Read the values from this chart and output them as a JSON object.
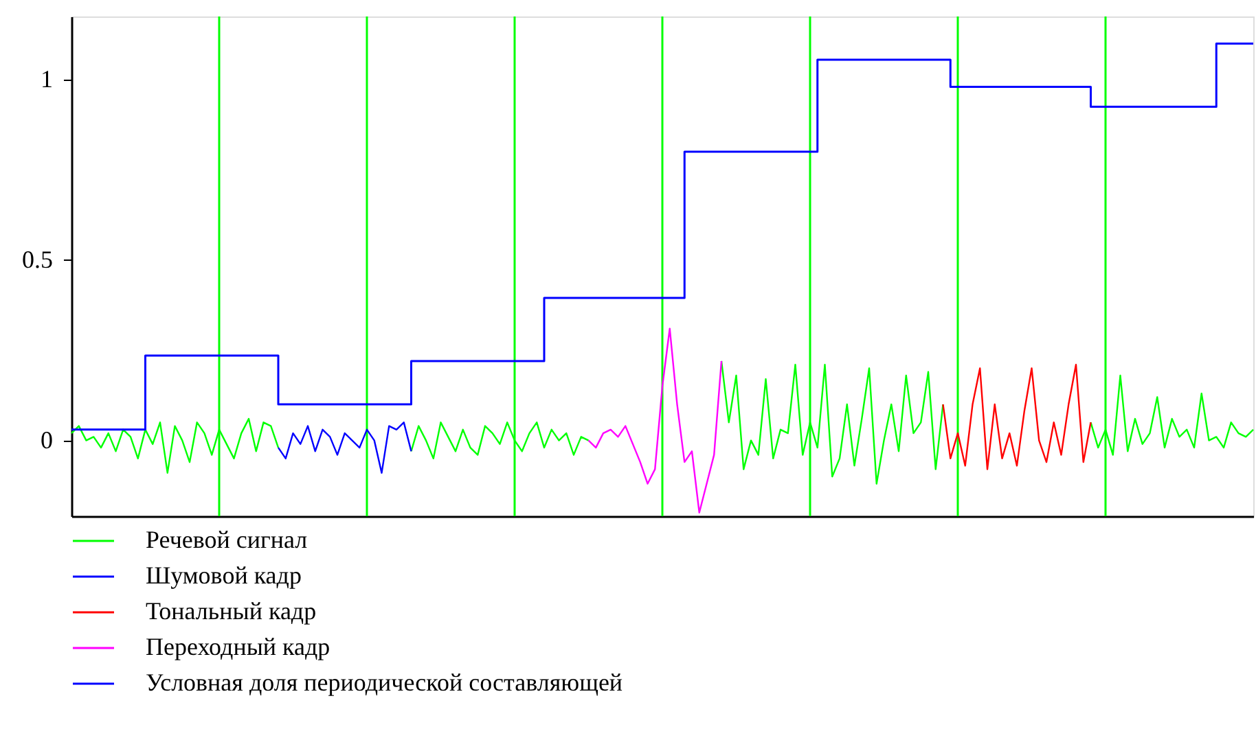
{
  "chart_data": {
    "type": "line",
    "ylim": [
      -0.21,
      1.175
    ],
    "yticks": [
      0,
      0.5,
      1
    ],
    "tick_labels": "y",
    "grid": false,
    "legend": "bottom",
    "marker": "none",
    "line_style": "solid",
    "categories": [
      null,
      null,
      null,
      null,
      null,
      null,
      null,
      null,
      null,
      null,
      null,
      null,
      null,
      null,
      null,
      null,
      null,
      null,
      null,
      null,
      null,
      null,
      null,
      null,
      null,
      null,
      null,
      null,
      null,
      null,
      null,
      null,
      null,
      null,
      null,
      null,
      null,
      null,
      null,
      null,
      null,
      null,
      null,
      null,
      null,
      null,
      null,
      null,
      null,
      null,
      null,
      null,
      null,
      null,
      null,
      null,
      null,
      null,
      null,
      null,
      null,
      null,
      null,
      null,
      null,
      null,
      null,
      null,
      null,
      null,
      null,
      null,
      null,
      null,
      null,
      null,
      null,
      null,
      null,
      null,
      null,
      null,
      null,
      null,
      null,
      null,
      null,
      null,
      null,
      null,
      null,
      null,
      null,
      null,
      null,
      null,
      null,
      null,
      null,
      null,
      null,
      null,
      null,
      null,
      null,
      null,
      null,
      null,
      null,
      null,
      null,
      null,
      null,
      null,
      null,
      null,
      null,
      null,
      null,
      null,
      null,
      null,
      null,
      null,
      null,
      null,
      null,
      null,
      null,
      null,
      null,
      null,
      null,
      null,
      null,
      null,
      null,
      null,
      null,
      null,
      null,
      null,
      null,
      null,
      null,
      null,
      null,
      null,
      null,
      null,
      null,
      null,
      null,
      null,
      null,
      null,
      null,
      null,
      null,
      null,
      null
    ],
    "series": [
      {
        "name": "Речевой сигнал",
        "color": "#00ff00",
        "values": [
          0.02,
          0.04,
          0.0,
          0.01,
          -0.02,
          0.02,
          -0.03,
          0.03,
          0.01,
          -0.05,
          0.03,
          -0.01,
          0.05,
          -0.09,
          0.04,
          0.0,
          -0.06,
          0.05,
          0.02,
          -0.04,
          0.03,
          -0.01,
          -0.05,
          0.02,
          0.06,
          -0.03,
          0.05,
          0.04,
          -0.02,
          null,
          null,
          null,
          null,
          null,
          null,
          null,
          null,
          null,
          null,
          null,
          null,
          null,
          null,
          null,
          null,
          null,
          -0.03,
          0.04,
          0.0,
          -0.05,
          0.05,
          0.01,
          -0.03,
          0.03,
          -0.02,
          -0.04,
          0.04,
          0.02,
          -0.01,
          0.05,
          0.0,
          -0.03,
          0.02,
          0.05,
          -0.02,
          0.03,
          0.0,
          0.02,
          -0.04,
          0.01,
          0.0,
          null,
          null,
          null,
          null,
          null,
          null,
          null,
          null,
          null,
          null,
          null,
          null,
          null,
          null,
          null,
          null,
          null,
          0.22,
          0.05,
          0.18,
          -0.08,
          0.0,
          -0.04,
          0.17,
          -0.05,
          0.03,
          0.02,
          0.21,
          -0.04,
          0.05,
          -0.02,
          0.21,
          -0.1,
          -0.05,
          0.1,
          -0.07,
          0.06,
          0.2,
          -0.12,
          0.0,
          0.1,
          -0.03,
          0.18,
          0.02,
          0.05,
          0.19,
          -0.08,
          0.1,
          null,
          null,
          null,
          null,
          null,
          null,
          null,
          null,
          null,
          null,
          null,
          null,
          null,
          null,
          null,
          null,
          null,
          null,
          null,
          0.05,
          -0.02,
          0.03,
          -0.04,
          0.18,
          -0.03,
          0.06,
          -0.01,
          0.02,
          0.12,
          -0.02,
          0.06,
          0.01,
          0.03,
          -0.02,
          0.13,
          0.0,
          0.01,
          -0.02,
          0.05,
          0.02,
          0.01,
          0.03
        ]
      },
      {
        "name": "Шумовой кадр",
        "color": "#0000ff",
        "values": [
          null,
          null,
          null,
          null,
          null,
          null,
          null,
          null,
          null,
          null,
          null,
          null,
          null,
          null,
          null,
          null,
          null,
          null,
          null,
          null,
          null,
          null,
          null,
          null,
          null,
          null,
          null,
          null,
          -0.02,
          -0.05,
          0.02,
          -0.01,
          0.04,
          -0.03,
          0.03,
          0.01,
          -0.04,
          0.02,
          0.0,
          -0.02,
          0.03,
          0.0,
          -0.09,
          0.04,
          0.03,
          0.05,
          -0.03,
          null,
          null,
          null,
          null,
          null,
          null,
          null,
          null,
          null,
          null,
          null,
          null,
          null,
          null,
          null,
          null,
          null,
          null,
          null,
          null,
          null,
          null,
          null,
          null,
          null,
          null,
          null,
          null,
          null,
          null,
          null,
          null,
          null,
          null,
          null,
          null,
          null,
          null,
          null,
          null,
          null,
          null,
          null,
          null,
          null,
          null,
          null,
          null,
          null,
          null,
          null,
          null,
          null,
          null,
          null,
          null,
          null,
          null,
          null,
          null,
          null,
          null,
          null,
          null,
          null,
          null,
          null,
          null,
          null,
          null,
          null,
          null,
          null,
          null,
          null,
          null,
          null,
          null,
          null,
          null,
          null,
          null,
          null,
          null,
          null,
          null,
          null,
          null,
          null,
          null,
          null,
          null,
          null,
          null,
          null,
          null,
          null,
          null,
          null,
          null,
          null,
          null,
          null,
          null,
          null,
          null,
          null,
          null,
          null,
          null,
          null,
          null,
          null,
          null
        ]
      },
      {
        "name": "Тональный кадр",
        "color": "#ff0000",
        "values": [
          null,
          null,
          null,
          null,
          null,
          null,
          null,
          null,
          null,
          null,
          null,
          null,
          null,
          null,
          null,
          null,
          null,
          null,
          null,
          null,
          null,
          null,
          null,
          null,
          null,
          null,
          null,
          null,
          null,
          null,
          null,
          null,
          null,
          null,
          null,
          null,
          null,
          null,
          null,
          null,
          null,
          null,
          null,
          null,
          null,
          null,
          null,
          null,
          null,
          null,
          null,
          null,
          null,
          null,
          null,
          null,
          null,
          null,
          null,
          null,
          null,
          null,
          null,
          null,
          null,
          null,
          null,
          null,
          null,
          null,
          null,
          null,
          null,
          null,
          null,
          null,
          null,
          null,
          null,
          null,
          null,
          null,
          null,
          null,
          null,
          null,
          null,
          null,
          null,
          null,
          null,
          null,
          null,
          null,
          null,
          null,
          null,
          null,
          null,
          null,
          null,
          null,
          null,
          null,
          null,
          null,
          null,
          null,
          null,
          null,
          null,
          null,
          null,
          null,
          null,
          null,
          null,
          null,
          0.1,
          -0.05,
          0.02,
          -0.07,
          0.1,
          0.2,
          -0.08,
          0.1,
          -0.05,
          0.02,
          -0.07,
          0.08,
          0.2,
          0.0,
          -0.06,
          0.05,
          -0.04,
          0.1,
          0.21,
          -0.06,
          0.05,
          null,
          null,
          null,
          null,
          null,
          null,
          null,
          null,
          null,
          null,
          null,
          null,
          null,
          null,
          null,
          null,
          null,
          null,
          null,
          null,
          null,
          null
        ]
      },
      {
        "name": "Переходный кадр",
        "color": "#ff00ff",
        "values": [
          null,
          null,
          null,
          null,
          null,
          null,
          null,
          null,
          null,
          null,
          null,
          null,
          null,
          null,
          null,
          null,
          null,
          null,
          null,
          null,
          null,
          null,
          null,
          null,
          null,
          null,
          null,
          null,
          null,
          null,
          null,
          null,
          null,
          null,
          null,
          null,
          null,
          null,
          null,
          null,
          null,
          null,
          null,
          null,
          null,
          null,
          null,
          null,
          null,
          null,
          null,
          null,
          null,
          null,
          null,
          null,
          null,
          null,
          null,
          null,
          null,
          null,
          null,
          null,
          null,
          null,
          null,
          null,
          null,
          null,
          0.0,
          -0.02,
          0.02,
          0.03,
          0.01,
          0.04,
          -0.01,
          -0.06,
          -0.12,
          -0.08,
          0.15,
          0.31,
          0.1,
          -0.06,
          -0.03,
          -0.2,
          -0.12,
          -0.04,
          0.22,
          null,
          null,
          null,
          null,
          null,
          null,
          null,
          null,
          null,
          null,
          null,
          null,
          null,
          null,
          null,
          null,
          null,
          null,
          null,
          null,
          null,
          null,
          null,
          null,
          null,
          null,
          null,
          null,
          null,
          null,
          null,
          null,
          null,
          null,
          null,
          null,
          null,
          null,
          null,
          null,
          null,
          null,
          null,
          null,
          null,
          null,
          null,
          null,
          null,
          null,
          null,
          null,
          null,
          null,
          null,
          null,
          null,
          null,
          null,
          null,
          null,
          null,
          null,
          null,
          null,
          null,
          null,
          null,
          null,
          null,
          null,
          null
        ]
      },
      {
        "name": "Условная доля периодической составляющей",
        "color": "#0000ff",
        "type": "step",
        "values": [
          0.03,
          0.03,
          0.03,
          0.03,
          0.03,
          0.03,
          0.03,
          0.03,
          0.03,
          0.03,
          0.235,
          0.235,
          0.235,
          0.235,
          0.235,
          0.235,
          0.235,
          0.235,
          0.235,
          0.235,
          0.235,
          0.235,
          0.235,
          0.235,
          0.235,
          0.235,
          0.235,
          0.235,
          0.1,
          0.1,
          0.1,
          0.1,
          0.1,
          0.1,
          0.1,
          0.1,
          0.1,
          0.1,
          0.1,
          0.1,
          0.1,
          0.1,
          0.1,
          0.1,
          0.1,
          0.1,
          0.22,
          0.22,
          0.22,
          0.22,
          0.22,
          0.22,
          0.22,
          0.22,
          0.22,
          0.22,
          0.22,
          0.22,
          0.22,
          0.22,
          0.22,
          0.22,
          0.22,
          0.22,
          0.395,
          0.395,
          0.395,
          0.395,
          0.395,
          0.395,
          0.395,
          0.395,
          0.395,
          0.395,
          0.395,
          0.395,
          0.395,
          0.395,
          0.395,
          0.395,
          0.395,
          0.395,
          0.395,
          0.8,
          0.8,
          0.8,
          0.8,
          0.8,
          0.8,
          0.8,
          0.8,
          0.8,
          0.8,
          0.8,
          0.8,
          0.8,
          0.8,
          0.8,
          0.8,
          0.8,
          0.8,
          1.055,
          1.055,
          1.055,
          1.055,
          1.055,
          1.055,
          1.055,
          1.055,
          1.055,
          1.055,
          1.055,
          1.055,
          1.055,
          1.055,
          1.055,
          1.055,
          1.055,
          1.055,
          0.98,
          0.98,
          0.98,
          0.98,
          0.98,
          0.98,
          0.98,
          0.98,
          0.98,
          0.98,
          0.98,
          0.98,
          0.98,
          0.98,
          0.98,
          0.98,
          0.98,
          0.98,
          0.98,
          0.925,
          0.925,
          0.925,
          0.925,
          0.925,
          0.925,
          0.925,
          0.925,
          0.925,
          0.925,
          0.925,
          0.925,
          0.925,
          0.925,
          0.925,
          0.925,
          0.925,
          1.1,
          1.1,
          1.1,
          1.1,
          1.1,
          1.1
        ]
      }
    ]
  }
}
